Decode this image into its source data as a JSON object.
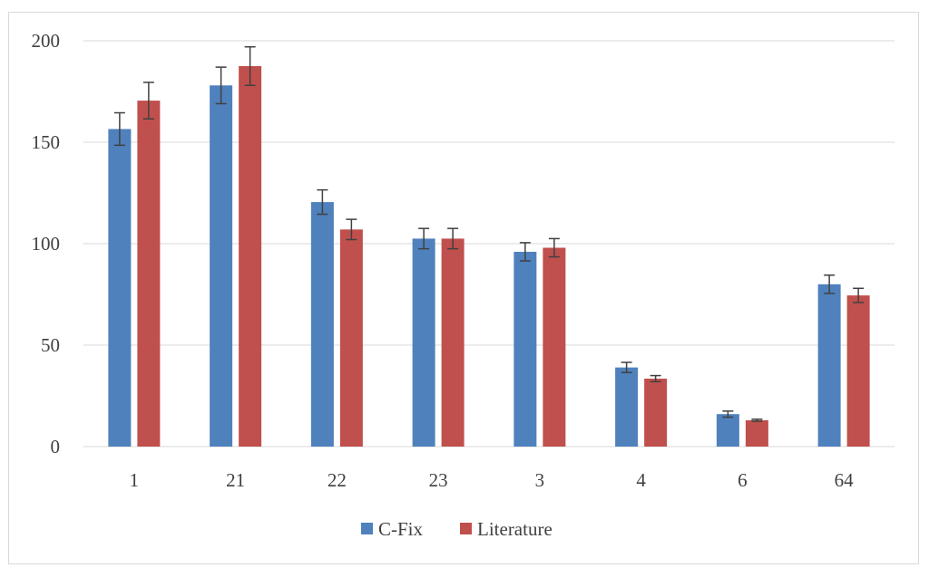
{
  "chart_data": {
    "type": "bar",
    "title": "",
    "xlabel": "",
    "ylabel": "",
    "categories": [
      "1",
      "21",
      "22",
      "23",
      "3",
      "4",
      "6",
      "64"
    ],
    "series": [
      {
        "name": "C-Fix",
        "color": "#4f81bd",
        "values": [
          156.5,
          178,
          120.5,
          102.5,
          96,
          39,
          16,
          80
        ],
        "errors": [
          8,
          9,
          6,
          5,
          4.5,
          2.5,
          1.5,
          4.5
        ]
      },
      {
        "name": "Literature",
        "color": "#c0504d",
        "values": [
          170.5,
          187.5,
          107,
          102.5,
          98,
          33.5,
          13,
          74.5
        ],
        "errors": [
          9,
          9.5,
          5,
          5,
          4.5,
          1.5,
          0.5,
          3.5
        ]
      }
    ],
    "ylim": [
      0,
      200
    ],
    "yticks": [
      0,
      50,
      100,
      150,
      200
    ],
    "grid": true,
    "legend_position": "bottom",
    "gridline_color": "#d9d9d9",
    "errorbar_color": "#404040"
  }
}
